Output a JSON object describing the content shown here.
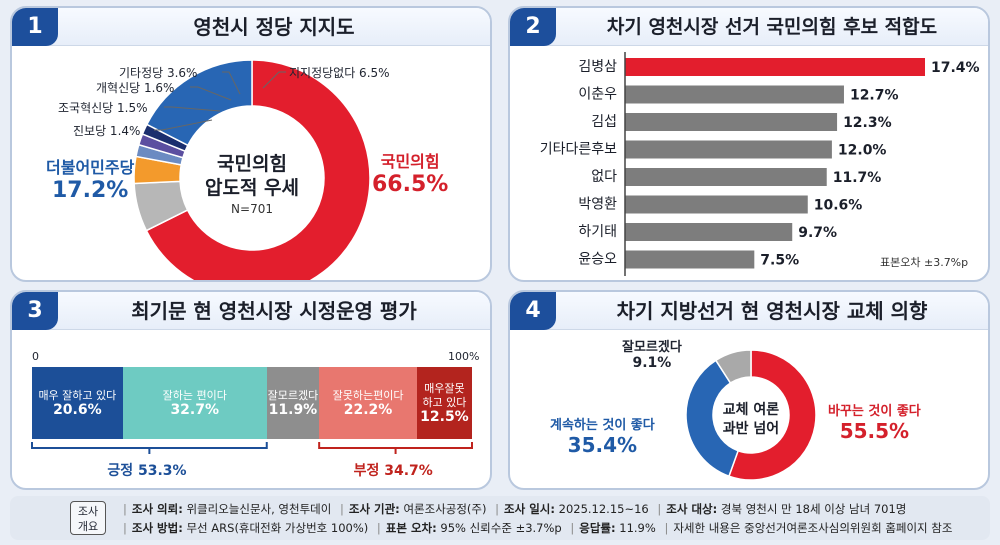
{
  "panel1": {
    "number": "1",
    "title": "영천시 정당 지지도",
    "center_line1": "국민의힘",
    "center_line2": "압도적 우세",
    "center_n": "N=701",
    "labels": [
      {
        "name": "국민의힘",
        "value": "66.5%"
      },
      {
        "name": "더불어민주당",
        "value": "17.2%"
      },
      {
        "text": "진보당 1.4%"
      },
      {
        "text": "조국혁신당 1.5%"
      },
      {
        "text": "개혁신당 1.6%"
      },
      {
        "text": "기타정당 3.6%"
      },
      {
        "text": "지지정당없다 6.5%"
      }
    ]
  },
  "panel2": {
    "number": "2",
    "title": "차기 영천시장 선거 국민의힘 후보 적합도",
    "note": "표본오차 ±3.7%p"
  },
  "panel3": {
    "number": "3",
    "title": "최기문 현 영천시장 시정운영 평가",
    "axis_start": "0",
    "axis_end": "100%",
    "segments": [
      {
        "label1": "매우 잘하고 있다",
        "label2": "",
        "value": "20.6%"
      },
      {
        "label1": "잘하는 편이다",
        "label2": "",
        "value": "32.7%"
      },
      {
        "label1": "잘모르겠다",
        "label2": "",
        "value": "11.9%"
      },
      {
        "label1": "잘못하는편이다",
        "label2": "",
        "value": "22.2%"
      },
      {
        "label1": "매우잘못",
        "label2": "하고 있다",
        "value": "12.5%"
      }
    ],
    "positive": "긍정 53.3%",
    "negative": "부정 34.7%"
  },
  "panel4": {
    "number": "4",
    "title": "차기 지방선거 현 영천시장 교체 의향",
    "center_line1": "교체 여론",
    "center_line2": "과반 넘어",
    "labels": [
      {
        "name": "바꾸는 것이 좋다",
        "value": "55.5%"
      },
      {
        "name": "계속하는 것이 좋다",
        "value": "35.4%"
      },
      {
        "name": "잘모르겠다",
        "value": "9.1%"
      }
    ]
  },
  "footer": {
    "tag_line1": "조사",
    "tag_line2": "개요",
    "row1": [
      {
        "k": "조사 의뢰:",
        "v": "위클리오늘신문사, 영천투데이"
      },
      {
        "k": "조사 기관:",
        "v": "여론조사공정(주)"
      },
      {
        "k": "조사 일시:",
        "v": "2025.12.15~16"
      },
      {
        "k": "조사 대상:",
        "v": "경북 영천시 만 18세 이상 남녀 701명"
      }
    ],
    "row2": [
      {
        "k": "조사 방법:",
        "v": "무선 ARS(휴대전화 가상번호 100%)"
      },
      {
        "k": "표본 오차:",
        "v": "95% 신뢰수준 ±3.7%p"
      },
      {
        "k": "응답률:",
        "v": "11.9%"
      },
      {
        "k": "",
        "v": "자세한 내용은 중앙선거여론조사심의위원회 홈페이지 참조"
      }
    ]
  },
  "chart_data": [
    {
      "type": "pie",
      "title": "영천시 정당 지지도",
      "categories": [
        "국민의힘",
        "더불어민주당",
        "진보당",
        "조국혁신당",
        "개혁신당",
        "기타정당",
        "지지정당없다"
      ],
      "values": [
        66.5,
        17.2,
        1.4,
        1.5,
        1.6,
        3.6,
        6.5
      ],
      "colors": [
        "#e31e2d",
        "#2866b4",
        "#1b2f6e",
        "#5b4fa0",
        "#6b8bc2",
        "#f39a2c",
        "#b7b7b7"
      ]
    },
    {
      "type": "bar",
      "title": "차기 영천시장 선거 국민의힘 후보 적합도",
      "categories": [
        "김병삼",
        "이춘우",
        "김섭",
        "기타다른후보",
        "없다",
        "박영환",
        "하기태",
        "윤승오"
      ],
      "values": [
        17.4,
        12.7,
        12.3,
        12.0,
        11.7,
        10.6,
        9.7,
        7.5
      ],
      "colors": [
        "#e31e2d",
        "#7d7d7d"
      ]
    },
    {
      "type": "bar",
      "title": "최기문 현 영천시장 시정운영 평가",
      "categories": [
        "매우 잘하고 있다",
        "잘하는 편이다",
        "잘모르겠다",
        "잘못하는편이다",
        "매우잘못 하고 있다"
      ],
      "values": [
        20.6,
        32.7,
        11.9,
        22.2,
        12.5
      ],
      "colors": [
        "#1c4f98",
        "#6ecbc2",
        "#8e8e8e",
        "#e8776f",
        "#b3241e"
      ]
    },
    {
      "type": "pie",
      "title": "차기 지방선거 현 영천시장 교체 의향",
      "categories": [
        "바꾸는 것이 좋다",
        "계속하는 것이 좋다",
        "잘모르겠다"
      ],
      "values": [
        55.5,
        35.4,
        9.1
      ],
      "colors": [
        "#e31e2d",
        "#2866b4",
        "#a9a9a9"
      ]
    }
  ]
}
